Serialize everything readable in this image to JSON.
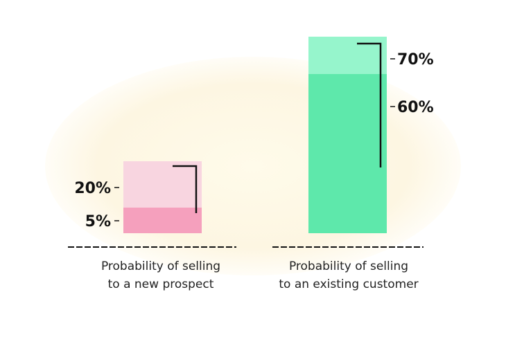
{
  "chart_data": {
    "type": "bar",
    "categories": [
      [
        "Probability of selling",
        "to a new prospect"
      ],
      [
        "Probability of selling",
        "to an existing customer"
      ]
    ],
    "series": [
      {
        "values": [
          5,
          60
        ]
      },
      {
        "values": [
          20,
          70
        ]
      }
    ],
    "range_labels": [
      {
        "low": "5%",
        "high": "20%"
      },
      {
        "low": "60%",
        "high": "70%"
      }
    ],
    "colors": {
      "new_prospect_base": "#f5a0bd",
      "new_prospect_range": "#f8d5e0",
      "existing_customer_base": "#5ee8ab",
      "existing_customer_range": "#96f5cc",
      "background_glow": "#fdf6e2"
    }
  }
}
